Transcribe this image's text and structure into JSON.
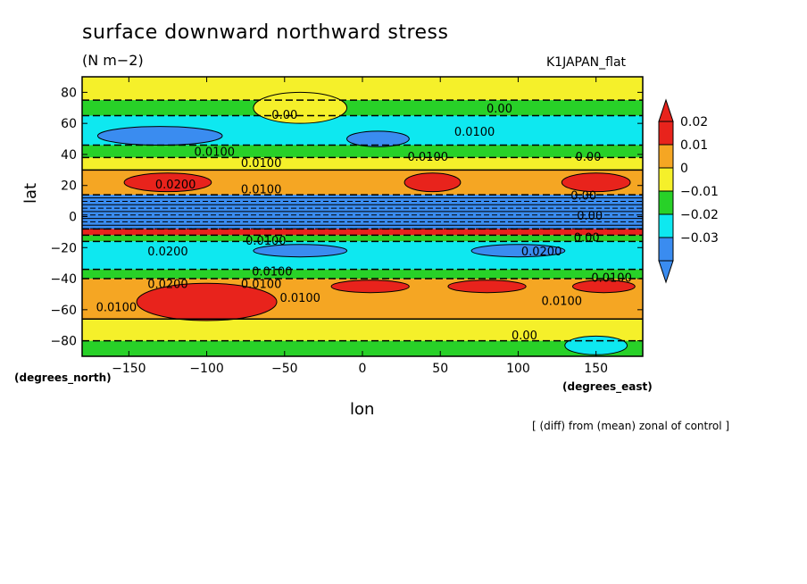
{
  "chart_data": {
    "type": "heatmap",
    "title": "surface downward northward stress",
    "units": "(N m−2)",
    "experiment": "K1JAPAN_flat",
    "footnote": "[ (diff) from (mean) zonal of control ]",
    "xlabel": "lon",
    "ylabel": "lat",
    "x_units": "(degrees_east)",
    "y_units": "(degrees_north)",
    "xlim": [
      -180,
      180
    ],
    "ylim": [
      -90,
      90
    ],
    "x_ticks": [
      -150,
      -100,
      -50,
      0,
      50,
      100,
      150
    ],
    "x_tick_labels": [
      "−150",
      "−100",
      "−50",
      "0",
      "50",
      "100",
      "150"
    ],
    "y_ticks": [
      80,
      60,
      40,
      20,
      0,
      -20,
      -40,
      -60,
      -80
    ],
    "y_tick_labels": [
      "80",
      "60",
      "40",
      "20",
      "0",
      "−20",
      "−40",
      "−60",
      "−80"
    ],
    "colorbar": {
      "levels": [
        0.02,
        0.01,
        0,
        -0.01,
        -0.02,
        -0.03
      ],
      "labels": [
        "0.02",
        "0.01",
        "0",
        "−0.01",
        "−0.02",
        "−0.03"
      ],
      "colors": [
        "#e8231c",
        "#f5a623",
        "#f5f02a",
        "#28d128",
        "#0ee8f0",
        "#3a8cf0"
      ],
      "extend": "both"
    },
    "bands": [
      {
        "lat_top": 90,
        "lat_bottom": 75,
        "value": 0.005,
        "color": "#f5f02a"
      },
      {
        "lat_top": 75,
        "lat_bottom": 65,
        "value": -0.005,
        "color": "#28d128"
      },
      {
        "lat_top": 65,
        "lat_bottom": 46,
        "value": -0.015,
        "color": "#0ee8f0"
      },
      {
        "lat_top": 46,
        "lat_bottom": 38,
        "value": -0.005,
        "color": "#28d128"
      },
      {
        "lat_top": 38,
        "lat_bottom": 30,
        "value": 0.005,
        "color": "#f5f02a"
      },
      {
        "lat_top": 30,
        "lat_bottom": 14,
        "value": 0.015,
        "color": "#f5a623"
      },
      {
        "lat_top": 14,
        "lat_bottom": -8,
        "value": -0.025,
        "color": "#3a8cf0"
      },
      {
        "lat_top": -8,
        "lat_bottom": -12,
        "value": 0.025,
        "color": "#e8231c"
      },
      {
        "lat_top": -12,
        "lat_bottom": -16,
        "value": -0.005,
        "color": "#28d128"
      },
      {
        "lat_top": -16,
        "lat_bottom": -34,
        "value": -0.015,
        "color": "#0ee8f0"
      },
      {
        "lat_top": -34,
        "lat_bottom": -40,
        "value": -0.005,
        "color": "#28d128"
      },
      {
        "lat_top": -40,
        "lat_bottom": -66,
        "value": 0.015,
        "color": "#f5a623"
      },
      {
        "lat_top": -66,
        "lat_bottom": -80,
        "value": 0.005,
        "color": "#f5f02a"
      },
      {
        "lat_top": -80,
        "lat_bottom": -90,
        "value": -0.005,
        "color": "#28d128"
      }
    ],
    "blobs": [
      {
        "lon": -125,
        "lat": 22,
        "rlon": 28,
        "rlat": 6,
        "color": "#e8231c"
      },
      {
        "lon": 45,
        "lat": 22,
        "rlon": 18,
        "rlat": 6,
        "color": "#e8231c"
      },
      {
        "lon": 150,
        "lat": 22,
        "rlon": 22,
        "rlat": 6,
        "color": "#e8231c"
      },
      {
        "lon": -100,
        "lat": -55,
        "rlon": 45,
        "rlat": 12,
        "color": "#e8231c"
      },
      {
        "lon": 5,
        "lat": -45,
        "rlon": 25,
        "rlat": 4,
        "color": "#e8231c"
      },
      {
        "lon": 80,
        "lat": -45,
        "rlon": 25,
        "rlat": 4,
        "color": "#e8231c"
      },
      {
        "lon": 155,
        "lat": -45,
        "rlon": 20,
        "rlat": 4,
        "color": "#e8231c"
      },
      {
        "lon": -40,
        "lat": 70,
        "rlon": 30,
        "rlat": 10,
        "color": "#f5f02a"
      },
      {
        "lon": -130,
        "lat": 52,
        "rlon": 40,
        "rlat": 6,
        "color": "#3a8cf0"
      },
      {
        "lon": 10,
        "lat": 50,
        "rlon": 20,
        "rlat": 5,
        "color": "#3a8cf0"
      },
      {
        "lon": -40,
        "lat": -22,
        "rlon": 30,
        "rlat": 4,
        "color": "#3a8cf0"
      },
      {
        "lon": 100,
        "lat": -22,
        "rlon": 30,
        "rlat": 4,
        "color": "#3a8cf0"
      },
      {
        "lon": 150,
        "lat": -83,
        "rlon": 20,
        "rlat": 6,
        "color": "#0ee8f0"
      }
    ],
    "contour_labels": [
      {
        "text": "0.00",
        "lon": -50,
        "lat": 65
      },
      {
        "text": "0.00",
        "lon": 88,
        "lat": 69
      },
      {
        "text": "0.0100",
        "lon": 72,
        "lat": 54
      },
      {
        "text": "0.0100",
        "lon": -95,
        "lat": 41
      },
      {
        "text": "0.0100",
        "lon": -65,
        "lat": 34
      },
      {
        "text": "0.0100",
        "lon": 42,
        "lat": 38
      },
      {
        "text": "0.00",
        "lon": 145,
        "lat": 38
      },
      {
        "text": "0.0200",
        "lon": -120,
        "lat": 20
      },
      {
        "text": "0.0100",
        "lon": -65,
        "lat": 17
      },
      {
        "text": "0.00",
        "lon": 142,
        "lat": 13
      },
      {
        "text": "0.00",
        "lon": 146,
        "lat": 0
      },
      {
        "text": "0.00",
        "lon": 144,
        "lat": -14
      },
      {
        "text": "0.0100",
        "lon": -62,
        "lat": -16
      },
      {
        "text": "0.0200",
        "lon": -125,
        "lat": -23
      },
      {
        "text": "0.0200",
        "lon": 115,
        "lat": -23
      },
      {
        "text": "0.0100",
        "lon": -58,
        "lat": -36
      },
      {
        "text": "0.0200",
        "lon": -125,
        "lat": -44
      },
      {
        "text": "0.0100",
        "lon": -65,
        "lat": -44
      },
      {
        "text": "0.0100",
        "lon": 160,
        "lat": -40
      },
      {
        "text": "0.0100",
        "lon": -40,
        "lat": -53
      },
      {
        "text": "0.0100",
        "lon": -158,
        "lat": -59
      },
      {
        "text": "0.0100",
        "lon": 128,
        "lat": -55
      },
      {
        "text": "0.00",
        "lon": 104,
        "lat": -77
      }
    ]
  }
}
